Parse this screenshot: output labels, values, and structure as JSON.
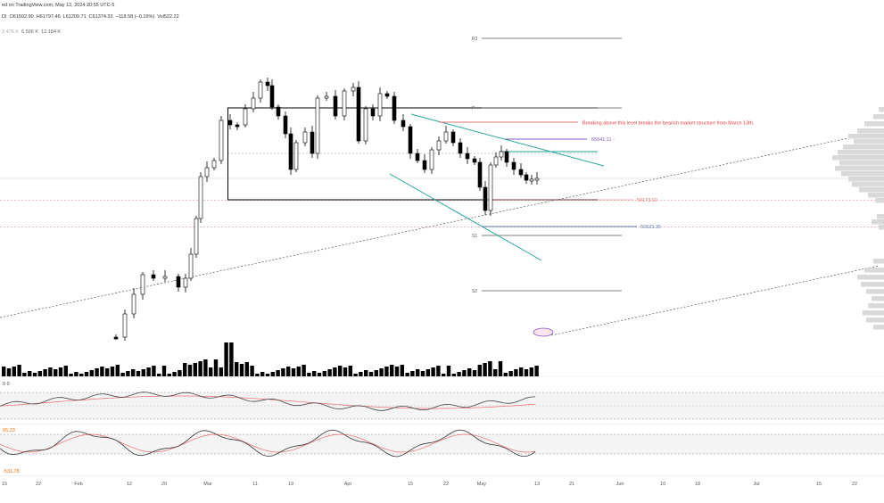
{
  "header": {
    "published": "ed on TradingView.com, May 12, 2024 20:55 UTC-5",
    "ohlc": [
      "DI",
      "O61502.90",
      "H61797.46",
      "L61209.71",
      "C61374.33",
      "−118.58 (−0.19%)",
      "Vol522.22"
    ],
    "volume_stats": [
      "3.476 K",
      "6.506 K",
      "12.184 K"
    ]
  },
  "pivots": {
    "r2": "R2",
    "p": "P",
    "s1": "S1",
    "s2": "S2"
  },
  "annotations": {
    "bearish_note": "Breaking above this level breaks the bearish market structure from March 13th.",
    "level_65541": "65541.11 -",
    "level_59173": "59173.92",
    "level_56523": "56523.35",
    "oscillator1_value": "0 0",
    "oscillator2_value_a": "65.33",
    "oscillator2_value_b": "-531.78"
  },
  "x_axis": {
    "labels": [
      "15",
      "22",
      "Feb",
      "12",
      "20",
      "Mar",
      "11",
      "19",
      "Apr",
      "15",
      "22",
      "May",
      "13",
      "21",
      "Jun",
      "10",
      "18",
      "Jul",
      "15",
      "22"
    ]
  },
  "colors": {
    "candle": "#000000",
    "channel": "#26a69a",
    "resistance_red": "#e57373",
    "level_purple": "#7e57c2",
    "level_teal": "#26a69a",
    "level_blue": "#5b7fb8",
    "dashed_red": "#e57373",
    "osc_line": "#444444",
    "osc_signal": "#ef6c6c"
  }
}
